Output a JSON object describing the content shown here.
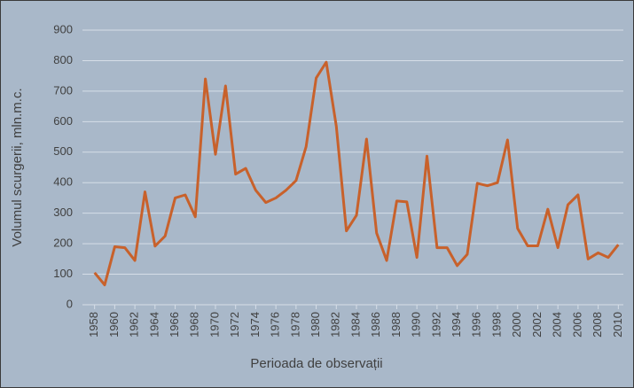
{
  "chart_data": {
    "type": "line",
    "x_label": "Perioada de observații",
    "y_label": "Volumul scurgerii, mln.m.c.",
    "x": [
      1958,
      1959,
      1960,
      1961,
      1962,
      1963,
      1964,
      1965,
      1966,
      1967,
      1968,
      1969,
      1970,
      1971,
      1972,
      1973,
      1974,
      1975,
      1976,
      1977,
      1978,
      1979,
      1980,
      1981,
      1982,
      1983,
      1984,
      1985,
      1986,
      1987,
      1988,
      1989,
      1990,
      1991,
      1992,
      1993,
      1994,
      1995,
      1996,
      1997,
      1998,
      1999,
      2000,
      2001,
      2002,
      2003,
      2004,
      2005,
      2006,
      2007,
      2008,
      2009,
      2010
    ],
    "series": [
      {
        "color": "#c8612b",
        "values": [
          105,
          65,
          190,
          187,
          145,
          370,
          192,
          225,
          350,
          360,
          288,
          740,
          493,
          717,
          428,
          447,
          375,
          335,
          350,
          375,
          407,
          518,
          743,
          795,
          585,
          242,
          293,
          543,
          235,
          145,
          340,
          337,
          155,
          487,
          187,
          187,
          128,
          165,
          398,
          390,
          400,
          540,
          250,
          193,
          193,
          313,
          187,
          328,
          360,
          150,
          170,
          155,
          197
        ]
      }
    ],
    "xlim": [
      1957.5,
      2010.5
    ],
    "xticks": [
      1958,
      1960,
      1962,
      1964,
      1966,
      1968,
      1970,
      1972,
      1974,
      1976,
      1978,
      1980,
      1982,
      1984,
      1986,
      1988,
      1990,
      1992,
      1994,
      1996,
      1998,
      2000,
      2002,
      2004,
      2006,
      2008,
      2010
    ],
    "ylim": [
      0,
      900
    ],
    "yticks": [
      0,
      100,
      200,
      300,
      400,
      500,
      600,
      700,
      800,
      900
    ],
    "grid": true
  }
}
